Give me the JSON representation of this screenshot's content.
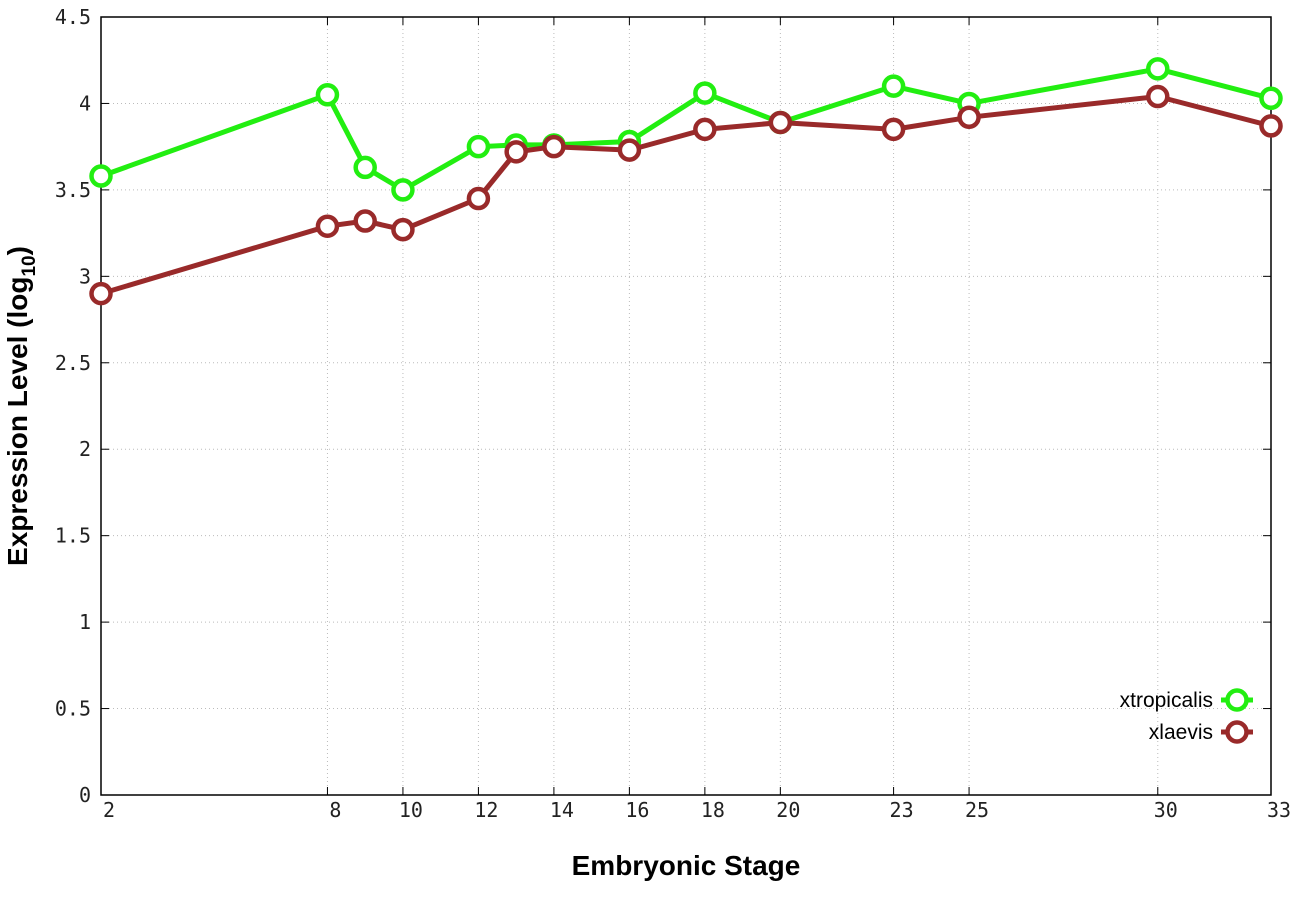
{
  "chart_data": {
    "type": "line",
    "title": "",
    "xlabel": "Embryonic Stage",
    "ylabel": "Expression Level (log",
    "ylabel_sub": "10",
    "ylabel_end": ")",
    "x": [
      2,
      8,
      9,
      10,
      12,
      13,
      14,
      16,
      18,
      20,
      23,
      25,
      30,
      33
    ],
    "x_tick_labels": [
      "2",
      "8",
      "10",
      "12",
      "14",
      "16",
      "18",
      "20",
      "23",
      "25",
      "30",
      "33"
    ],
    "y_tick_labels": [
      "0",
      "0.5",
      "1",
      "1.5",
      "2",
      "2.5",
      "3",
      "3.5",
      "4",
      "4.5"
    ],
    "y_ticks": [
      0,
      0.5,
      1,
      1.5,
      2,
      2.5,
      3,
      3.5,
      4,
      4.5
    ],
    "xlim": [
      2,
      33
    ],
    "ylim": [
      0,
      4.5
    ],
    "grid": true,
    "legend_position": "bottom-right",
    "series": [
      {
        "name": "xtropicalis",
        "color": "#22ee11",
        "values": [
          3.58,
          4.05,
          3.63,
          3.5,
          3.75,
          3.76,
          3.76,
          3.78,
          4.06,
          3.89,
          4.1,
          4.0,
          4.2,
          4.03
        ]
      },
      {
        "name": "xlaevis",
        "color": "#992a2a",
        "values": [
          2.9,
          3.29,
          3.32,
          3.27,
          3.45,
          3.72,
          3.75,
          3.73,
          3.85,
          3.89,
          3.85,
          3.92,
          4.04,
          3.87
        ]
      }
    ]
  }
}
